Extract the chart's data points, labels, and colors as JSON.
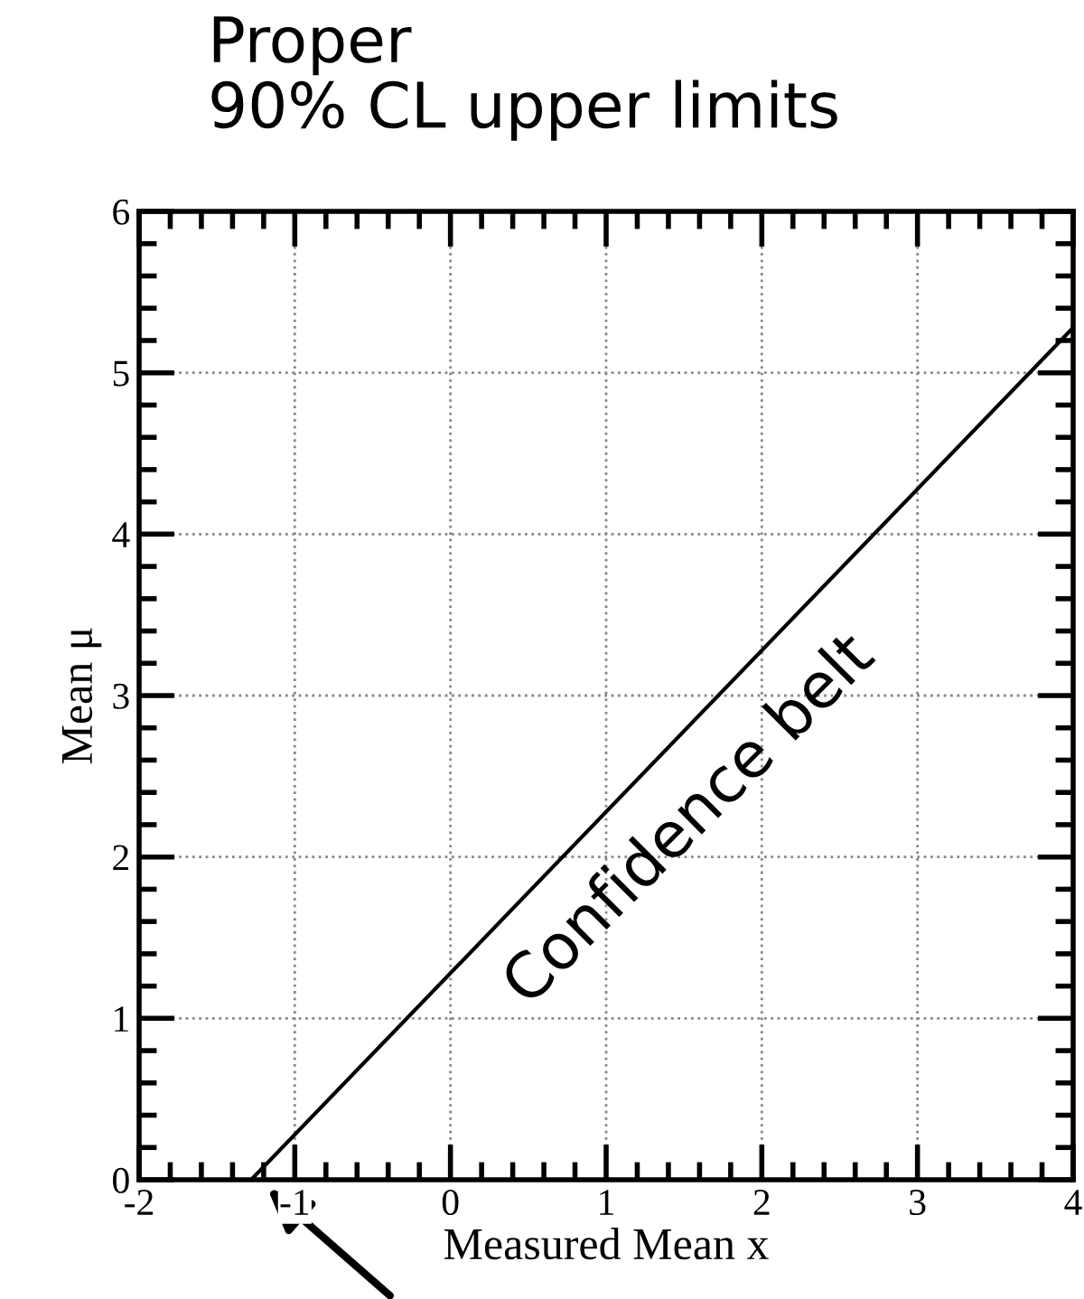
{
  "chart_data": {
    "type": "line",
    "title": "Proper\n90% CL upper limits",
    "xlabel": "Measured Mean x",
    "ylabel": "Mean μ",
    "annotations": [
      "Confidence belt"
    ],
    "series": [
      {
        "x": [
          -1.28,
          4
        ],
        "values": [
          0,
          5.28
        ],
        "color": "#000000"
      }
    ],
    "xlim": [
      -2,
      4
    ],
    "xticks": [
      -2,
      -1,
      0,
      1,
      2,
      3,
      4
    ],
    "ylim": [
      0,
      6
    ],
    "yticks": [
      0,
      1,
      2,
      3,
      4,
      5,
      6
    ],
    "grid": true,
    "line_style": "solid",
    "marker": "none"
  }
}
